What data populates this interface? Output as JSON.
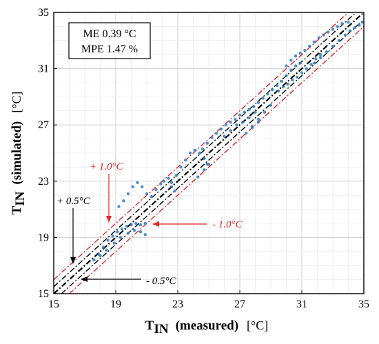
{
  "chart_data": {
    "type": "scatter",
    "title": "",
    "xlabel": {
      "main": "T",
      "sub": "IN",
      "desc": "(measured)",
      "unit": "[°C]"
    },
    "ylabel": {
      "main": "T",
      "sub": "IN",
      "desc": "(simulated)",
      "unit": "[°C]"
    },
    "xlim": [
      15,
      35
    ],
    "ylim": [
      15,
      35
    ],
    "xticks": [
      "15",
      "19",
      "23",
      "27",
      "31",
      "35"
    ],
    "yticks": [
      "15",
      "19",
      "23",
      "27",
      "31",
      "35"
    ],
    "grid": true,
    "stats": [
      "ME 0.39 °C",
      "MPE 1.47 %"
    ],
    "reference_lines": [
      {
        "offset": 0,
        "style": "black-dashdot"
      },
      {
        "offset": 0.5,
        "style": "black-dashdot"
      },
      {
        "offset": -0.5,
        "style": "black-dashdot"
      },
      {
        "offset": 1.0,
        "style": "red-dashdot"
      },
      {
        "offset": -1.0,
        "style": "red-dashdot"
      }
    ],
    "annotations": [
      {
        "text": "+ 1.0°C",
        "color": "#e32626"
      },
      {
        "text": "- 1.0°C",
        "color": "#e32626"
      },
      {
        "text": "+ 0.5°C",
        "color": "#000000"
      },
      {
        "text": "- 0.5°C",
        "color": "#000000"
      }
    ],
    "series": [
      {
        "color": "#2b7bc4",
        "points": [
          [
            17.6,
            17.4
          ],
          [
            17.9,
            17.8
          ],
          [
            18.2,
            18.3
          ],
          [
            18.5,
            18.8
          ],
          [
            18.8,
            19.1
          ],
          [
            19.1,
            19.4
          ],
          [
            19.4,
            19.6
          ],
          [
            19.7,
            19.8
          ],
          [
            20.0,
            19.9
          ],
          [
            20.3,
            20.0
          ],
          [
            20.6,
            19.9
          ],
          [
            20.9,
            20.0
          ],
          [
            18.0,
            17.7
          ],
          [
            18.4,
            18.1
          ],
          [
            18.9,
            18.6
          ],
          [
            19.3,
            19.0
          ],
          [
            19.8,
            19.3
          ],
          [
            20.2,
            19.5
          ],
          [
            20.6,
            19.4
          ],
          [
            20.9,
            19.2
          ],
          [
            19.2,
            21.2
          ],
          [
            19.5,
            21.6
          ],
          [
            19.8,
            22.1
          ],
          [
            20.1,
            22.6
          ],
          [
            20.4,
            22.9
          ],
          [
            20.7,
            22.6
          ],
          [
            21.0,
            22.1
          ],
          [
            21.3,
            21.9
          ],
          [
            21.6,
            22.4
          ],
          [
            21.9,
            22.8
          ],
          [
            22.1,
            23.0
          ],
          [
            22.4,
            23.2
          ],
          [
            22.6,
            22.6
          ],
          [
            22.8,
            22.3
          ],
          [
            22.6,
            22.9
          ],
          [
            22.9,
            23.4
          ],
          [
            23.2,
            24.0
          ],
          [
            23.5,
            24.5
          ],
          [
            23.8,
            25.0
          ],
          [
            24.1,
            25.2
          ],
          [
            24.4,
            25.0
          ],
          [
            24.7,
            24.6
          ],
          [
            24.9,
            24.2
          ],
          [
            24.3,
            23.3
          ],
          [
            24.7,
            23.8
          ],
          [
            25.0,
            24.2
          ],
          [
            24.6,
            25.3
          ],
          [
            24.9,
            25.7
          ],
          [
            25.2,
            26.1
          ],
          [
            25.5,
            26.4
          ],
          [
            25.8,
            26.7
          ],
          [
            26.1,
            27.0
          ],
          [
            26.4,
            27.2
          ],
          [
            26.7,
            27.4
          ],
          [
            27.0,
            27.7
          ],
          [
            27.3,
            27.9
          ],
          [
            27.6,
            28.1
          ],
          [
            27.9,
            28.3
          ],
          [
            26.0,
            26.2
          ],
          [
            26.4,
            26.6
          ],
          [
            26.8,
            27.0
          ],
          [
            27.2,
            27.2
          ],
          [
            27.6,
            27.5
          ],
          [
            28.0,
            27.9
          ],
          [
            27.4,
            26.4
          ],
          [
            27.8,
            26.8
          ],
          [
            28.2,
            27.2
          ],
          [
            28.2,
            28.6
          ],
          [
            28.5,
            28.9
          ],
          [
            28.8,
            29.2
          ],
          [
            29.1,
            29.5
          ],
          [
            29.4,
            29.8
          ],
          [
            29.7,
            30.1
          ],
          [
            30.0,
            30.5
          ],
          [
            30.3,
            30.9
          ],
          [
            30.6,
            31.2
          ],
          [
            30.9,
            31.4
          ],
          [
            29.5,
            29.4
          ],
          [
            29.8,
            29.7
          ],
          [
            30.1,
            29.9
          ],
          [
            30.4,
            30.2
          ],
          [
            30.7,
            30.4
          ],
          [
            31.0,
            30.7
          ],
          [
            31.3,
            31.0
          ],
          [
            31.6,
            31.3
          ],
          [
            31.9,
            31.7
          ],
          [
            32.2,
            32.0
          ],
          [
            30.0,
            31.2
          ],
          [
            30.3,
            31.6
          ],
          [
            30.6,
            31.9
          ],
          [
            30.9,
            32.1
          ],
          [
            31.2,
            32.3
          ],
          [
            31.5,
            32.6
          ],
          [
            31.8,
            32.9
          ],
          [
            32.1,
            33.2
          ],
          [
            32.4,
            33.4
          ],
          [
            32.7,
            33.6
          ],
          [
            33.0,
            33.8
          ],
          [
            33.3,
            34.0
          ],
          [
            33.6,
            34.2
          ],
          [
            34.0,
            34.3
          ],
          [
            31.8,
            31.4
          ],
          [
            32.2,
            31.8
          ],
          [
            32.6,
            32.2
          ],
          [
            33.0,
            32.6
          ],
          [
            33.4,
            33.0
          ],
          [
            33.8,
            33.4
          ],
          [
            34.1,
            33.7
          ],
          [
            34.4,
            33.9
          ],
          [
            34.7,
            34.1
          ],
          [
            34.9,
            34.3
          ],
          [
            29.0,
            28.4
          ],
          [
            28.6,
            27.9
          ],
          [
            28.2,
            27.4
          ],
          [
            27.8,
            26.9
          ]
        ]
      }
    ]
  }
}
